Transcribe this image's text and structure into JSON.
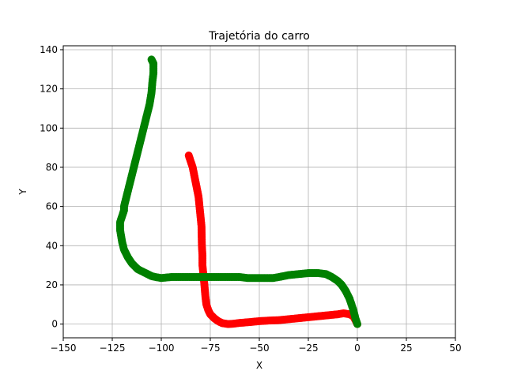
{
  "chart_data": {
    "type": "scatter",
    "title": "Trajetória do carro",
    "xlabel": "X",
    "ylabel": "Y",
    "xlim": [
      -150,
      50
    ],
    "ylim": [
      -7,
      142
    ],
    "xticks": [
      -150,
      -125,
      -100,
      -75,
      -50,
      -25,
      0,
      25,
      50
    ],
    "yticks": [
      0,
      20,
      40,
      60,
      80,
      100,
      120,
      140
    ],
    "xtick_labels": [
      "−150",
      "−125",
      "−100",
      "−75",
      "−50",
      "−25",
      "0",
      "25",
      "50"
    ],
    "ytick_labels": [
      "0",
      "20",
      "40",
      "60",
      "80",
      "100",
      "120",
      "140"
    ],
    "grid": true,
    "series": [
      {
        "color": "#ff0000",
        "x": [
          0,
          -1,
          -2,
          -4,
          -7,
          -10,
          -15,
          -20,
          -25,
          -30,
          -35,
          -40,
          -45,
          -50,
          -55,
          -60,
          -63,
          -66,
          -69,
          -71,
          -73,
          -75,
          -76,
          -77,
          -77.5,
          -78,
          -78.5,
          -79,
          -79,
          -79.3,
          -79.5,
          -80,
          -80.5,
          -81,
          -82,
          -83,
          -84,
          -85,
          -86
        ],
        "y": [
          0,
          2,
          4,
          5,
          5.5,
          5,
          4.5,
          4,
          3.5,
          3,
          2.5,
          2,
          1.8,
          1.5,
          1,
          0.6,
          0.2,
          0,
          0.5,
          1.5,
          3,
          5,
          7,
          10,
          14,
          20,
          25,
          30,
          35,
          40,
          50,
          55,
          60,
          65,
          70,
          75,
          80,
          83,
          86
        ]
      },
      {
        "color": "#008000",
        "x": [
          0,
          -1,
          -2,
          -3,
          -4,
          -6,
          -8,
          -10,
          -13,
          -16,
          -20,
          -25,
          -30,
          -35,
          -40,
          -43,
          -45,
          -48,
          -52,
          -56,
          -60,
          -65,
          -70,
          -75,
          -80,
          -85,
          -90,
          -95,
          -100,
          -103,
          -105,
          -108,
          -112,
          -115,
          -117,
          -119,
          -120,
          -121,
          -121,
          -120,
          -119,
          -119,
          -118,
          -116,
          -114,
          -112,
          -110,
          -108,
          -106,
          -105,
          -104.5,
          -104,
          -104,
          -104,
          -104,
          -104.5,
          -105
        ],
        "y": [
          0,
          3,
          7,
          10,
          13,
          17,
          20,
          22,
          24,
          25.5,
          26,
          26,
          25.5,
          25,
          24,
          23.5,
          23.5,
          23.5,
          23.5,
          23.5,
          24,
          24,
          24,
          24,
          24,
          24,
          24,
          24,
          23.5,
          24,
          24.5,
          26,
          28,
          31,
          34,
          38,
          42,
          48,
          52,
          55,
          58,
          60,
          64,
          72,
          80,
          88,
          96,
          104,
          112,
          118,
          124,
          128,
          130,
          132,
          133,
          134,
          135
        ]
      }
    ]
  }
}
